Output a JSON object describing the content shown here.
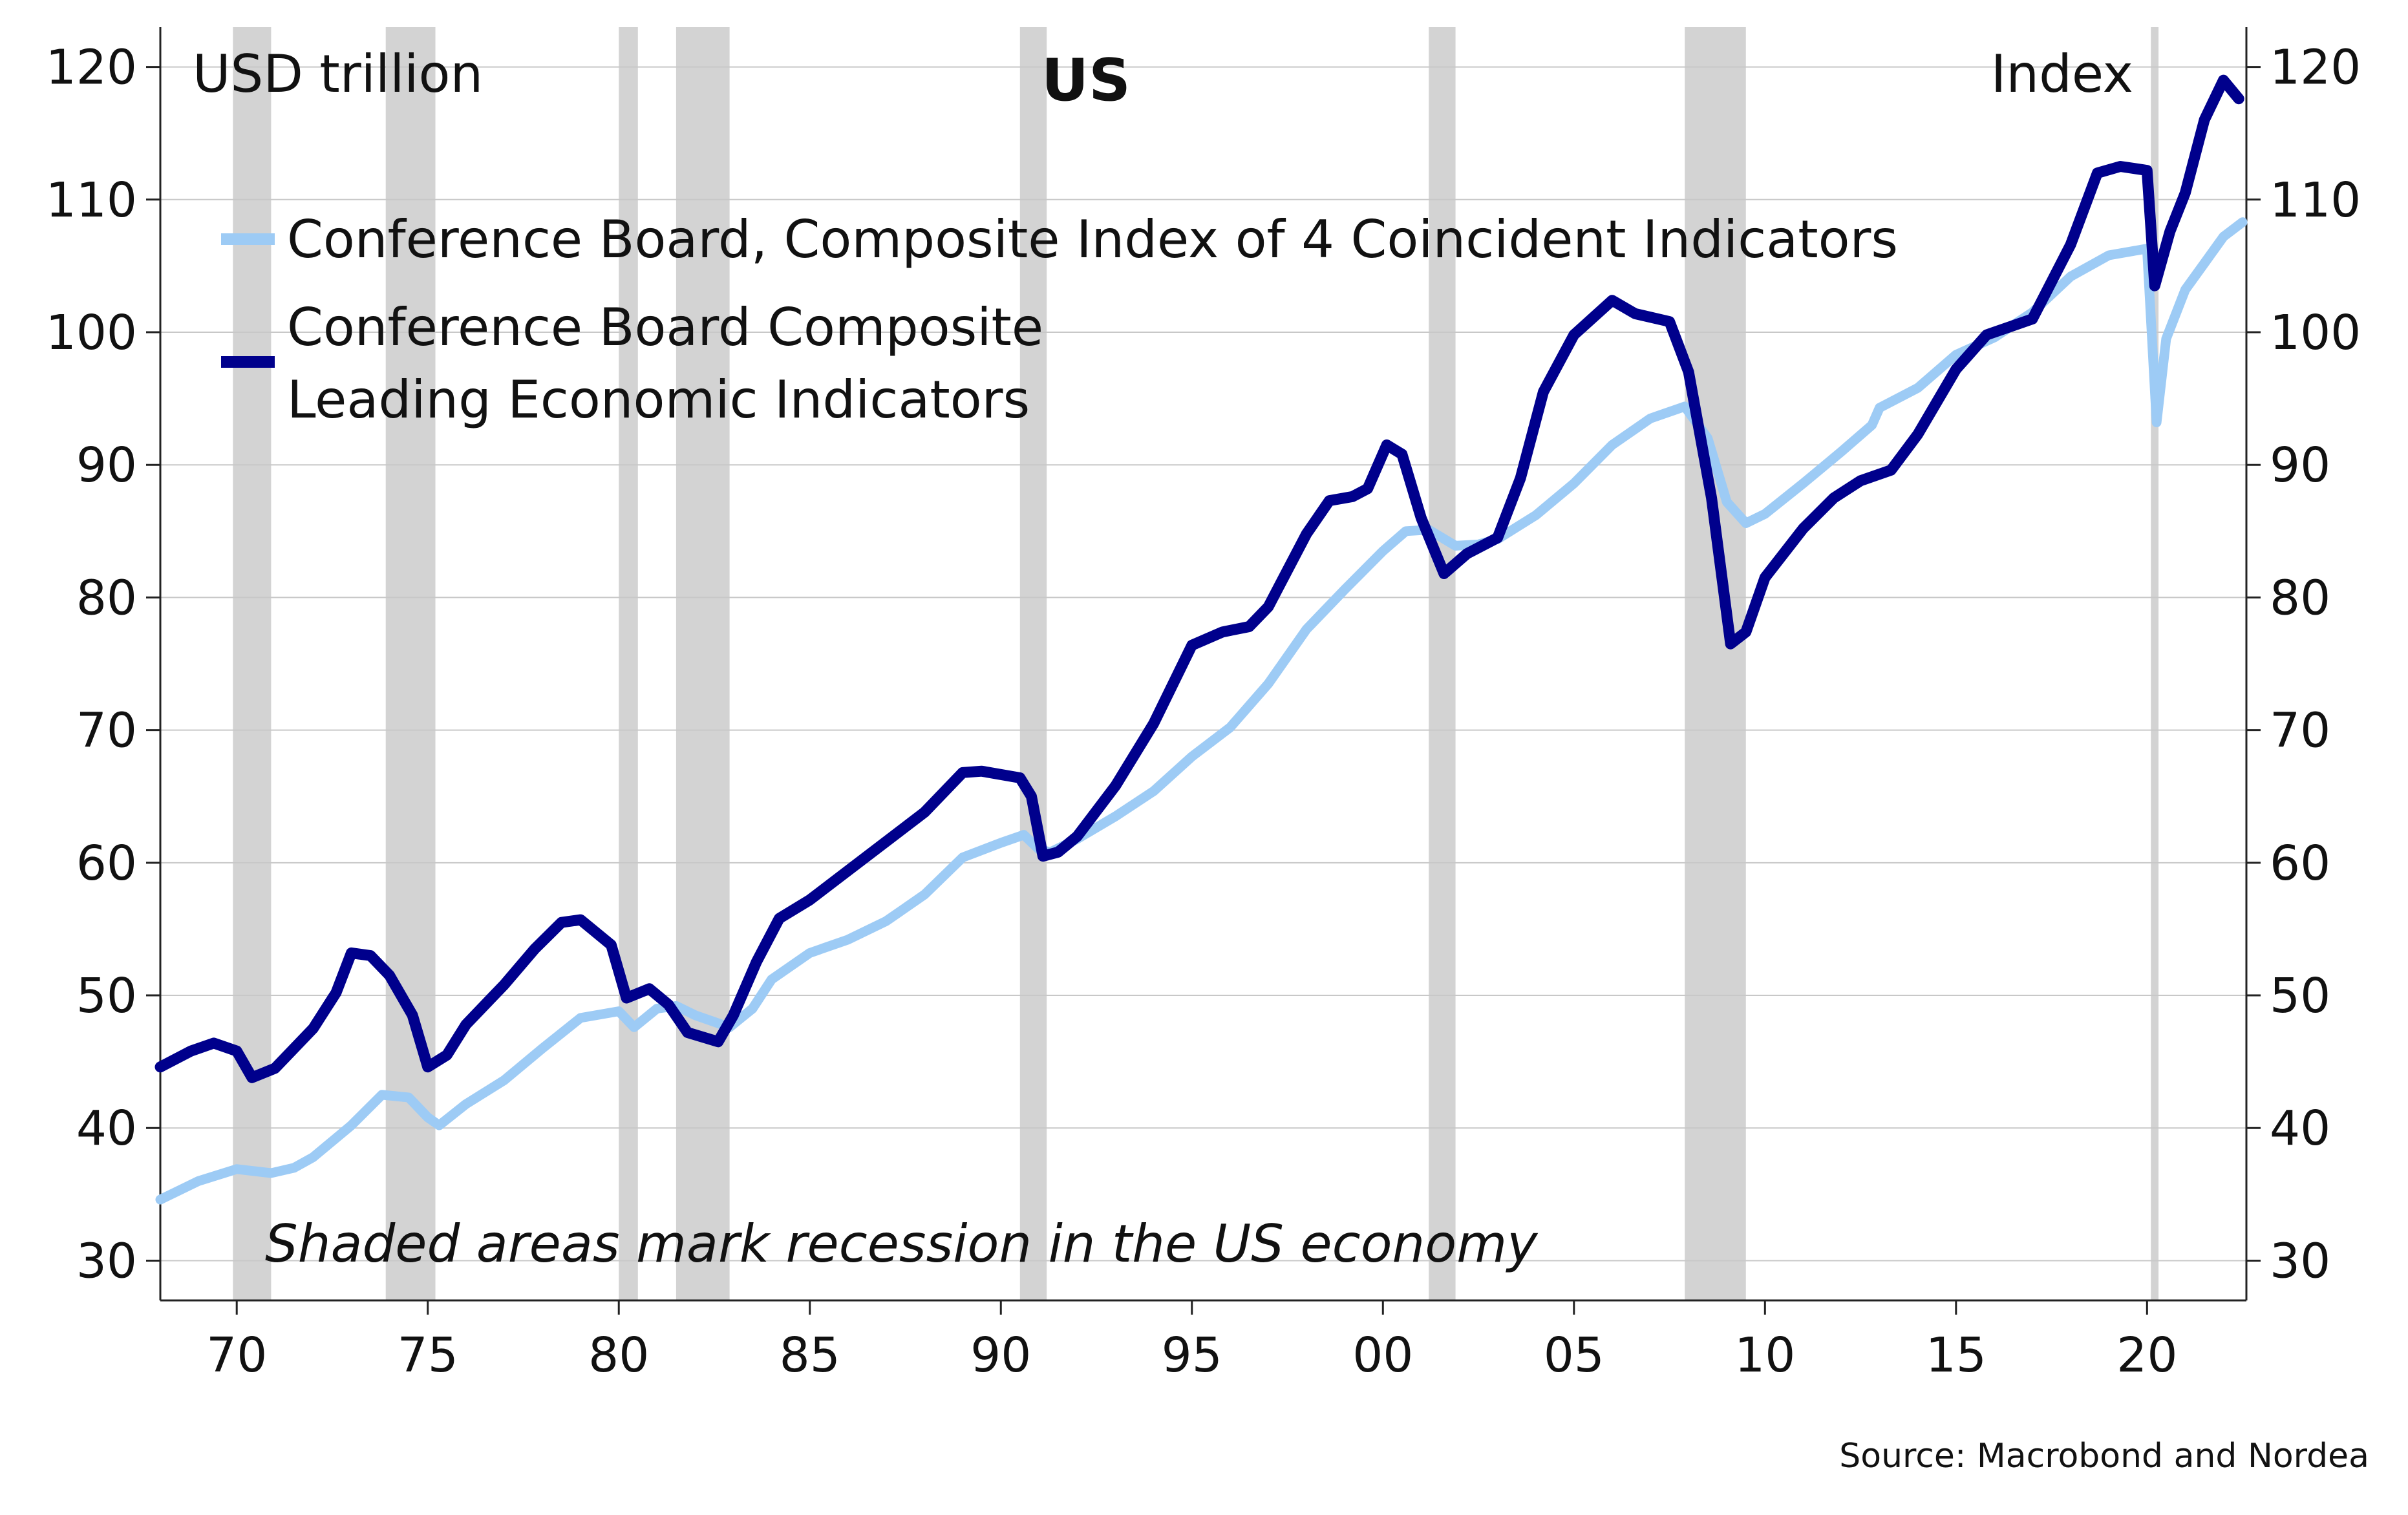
{
  "chart_data": {
    "type": "line",
    "title": "US",
    "ylabel_left": "USD trillion",
    "ylabel_right": "Index",
    "annotation": "Shaded areas mark recession in the US economy",
    "source": "Source: Macrobond and Nordea",
    "x_range": [
      1968,
      2022.6
    ],
    "ylim": [
      27,
      123
    ],
    "y_ticks": [
      30,
      40,
      50,
      60,
      70,
      80,
      90,
      100,
      110,
      120
    ],
    "x_ticks": [
      {
        "value": 1970,
        "label": "70"
      },
      {
        "value": 1975,
        "label": "75"
      },
      {
        "value": 1980,
        "label": "80"
      },
      {
        "value": 1985,
        "label": "85"
      },
      {
        "value": 1990,
        "label": "90"
      },
      {
        "value": 1995,
        "label": "95"
      },
      {
        "value": 2000,
        "label": "00"
      },
      {
        "value": 2005,
        "label": "05"
      },
      {
        "value": 2010,
        "label": "10"
      },
      {
        "value": 2015,
        "label": "15"
      },
      {
        "value": 2020,
        "label": "20"
      }
    ],
    "grid": "horizontal",
    "legend_position": "top-left",
    "recessions": [
      [
        1969.9,
        1970.9
      ],
      [
        1973.9,
        1975.2
      ],
      [
        1980.0,
        1980.5
      ],
      [
        1981.5,
        1982.9
      ],
      [
        1990.5,
        1991.2
      ],
      [
        2001.2,
        2001.9
      ],
      [
        2007.9,
        2009.5
      ],
      [
        2020.1,
        2020.3
      ]
    ],
    "recession_color": "#d3d3d3",
    "series": [
      {
        "name": "Conference Board, Composite Index of 4 Coincident Indicators",
        "color": "#9dcbf5",
        "points": [
          [
            1968.0,
            34.6
          ],
          [
            1969.0,
            36.0
          ],
          [
            1970.0,
            36.9
          ],
          [
            1970.9,
            36.6
          ],
          [
            1971.5,
            37.0
          ],
          [
            1972.0,
            37.8
          ],
          [
            1973.0,
            40.2
          ],
          [
            1973.8,
            42.5
          ],
          [
            1974.5,
            42.3
          ],
          [
            1975.0,
            40.8
          ],
          [
            1975.3,
            40.2
          ],
          [
            1976.0,
            41.8
          ],
          [
            1977.0,
            43.6
          ],
          [
            1978.0,
            46.0
          ],
          [
            1979.0,
            48.3
          ],
          [
            1980.0,
            48.8
          ],
          [
            1980.4,
            47.6
          ],
          [
            1981.0,
            49.0
          ],
          [
            1981.5,
            49.2
          ],
          [
            1982.0,
            48.5
          ],
          [
            1982.9,
            47.6
          ],
          [
            1983.5,
            49.0
          ],
          [
            1984.0,
            51.2
          ],
          [
            1985.0,
            53.2
          ],
          [
            1986.0,
            54.2
          ],
          [
            1987.0,
            55.6
          ],
          [
            1988.0,
            57.6
          ],
          [
            1989.0,
            60.4
          ],
          [
            1990.0,
            61.5
          ],
          [
            1990.6,
            62.1
          ],
          [
            1991.0,
            61.0
          ],
          [
            1991.3,
            60.8
          ],
          [
            1992.0,
            61.8
          ],
          [
            1993.0,
            63.5
          ],
          [
            1994.0,
            65.4
          ],
          [
            1995.0,
            68.0
          ],
          [
            1996.0,
            70.2
          ],
          [
            1997.0,
            73.5
          ],
          [
            1998.0,
            77.6
          ],
          [
            1999.0,
            80.6
          ],
          [
            2000.0,
            83.5
          ],
          [
            2000.6,
            85.0
          ],
          [
            2001.2,
            85.1
          ],
          [
            2001.9,
            83.9
          ],
          [
            2002.5,
            84.0
          ],
          [
            2003.0,
            84.4
          ],
          [
            2004.0,
            86.2
          ],
          [
            2005.0,
            88.6
          ],
          [
            2006.0,
            91.5
          ],
          [
            2007.0,
            93.5
          ],
          [
            2007.9,
            94.4
          ],
          [
            2008.5,
            92.0
          ],
          [
            2009.0,
            87.2
          ],
          [
            2009.5,
            85.6
          ],
          [
            2010.0,
            86.3
          ],
          [
            2011.0,
            88.6
          ],
          [
            2012.0,
            91.0
          ],
          [
            2012.8,
            93.0
          ],
          [
            2013.0,
            94.3
          ],
          [
            2014.0,
            95.8
          ],
          [
            2015.0,
            98.3
          ],
          [
            2016.0,
            99.6
          ],
          [
            2017.0,
            101.5
          ],
          [
            2018.0,
            104.2
          ],
          [
            2019.0,
            105.8
          ],
          [
            2020.0,
            106.3
          ],
          [
            2020.25,
            93.2
          ],
          [
            2020.5,
            99.5
          ],
          [
            2021.0,
            103.2
          ],
          [
            2021.5,
            105.2
          ],
          [
            2022.0,
            107.2
          ],
          [
            2022.5,
            108.3
          ]
        ]
      },
      {
        "name": "Conference Board Composite Leading Economic Indicators",
        "color": "#00008c",
        "points": [
          [
            1968.0,
            44.6
          ],
          [
            1968.8,
            45.8
          ],
          [
            1969.4,
            46.4
          ],
          [
            1970.0,
            45.8
          ],
          [
            1970.4,
            43.8
          ],
          [
            1971.0,
            44.5
          ],
          [
            1972.0,
            47.5
          ],
          [
            1972.6,
            50.2
          ],
          [
            1973.0,
            53.2
          ],
          [
            1973.5,
            53.0
          ],
          [
            1974.0,
            51.5
          ],
          [
            1974.6,
            48.5
          ],
          [
            1975.0,
            44.6
          ],
          [
            1975.5,
            45.5
          ],
          [
            1976.0,
            47.8
          ],
          [
            1977.0,
            50.8
          ],
          [
            1977.8,
            53.5
          ],
          [
            1978.5,
            55.5
          ],
          [
            1979.0,
            55.7
          ],
          [
            1979.8,
            53.8
          ],
          [
            1980.2,
            49.8
          ],
          [
            1980.8,
            50.5
          ],
          [
            1981.3,
            49.3
          ],
          [
            1981.8,
            47.2
          ],
          [
            1982.6,
            46.5
          ],
          [
            1983.0,
            48.5
          ],
          [
            1983.6,
            52.5
          ],
          [
            1984.2,
            55.8
          ],
          [
            1985.0,
            57.2
          ],
          [
            1986.0,
            59.4
          ],
          [
            1987.0,
            61.6
          ],
          [
            1988.0,
            63.8
          ],
          [
            1989.0,
            66.8
          ],
          [
            1989.5,
            66.9
          ],
          [
            1990.5,
            66.4
          ],
          [
            1990.8,
            65.0
          ],
          [
            1991.1,
            60.5
          ],
          [
            1991.5,
            60.8
          ],
          [
            1992.0,
            62.0
          ],
          [
            1993.0,
            65.8
          ],
          [
            1994.0,
            70.5
          ],
          [
            1995.0,
            76.4
          ],
          [
            1995.8,
            77.4
          ],
          [
            1996.5,
            77.8
          ],
          [
            1997.0,
            79.3
          ],
          [
            1998.0,
            84.8
          ],
          [
            1998.6,
            87.3
          ],
          [
            1999.2,
            87.6
          ],
          [
            1999.6,
            88.2
          ],
          [
            2000.1,
            91.5
          ],
          [
            2000.5,
            90.8
          ],
          [
            2001.0,
            86.0
          ],
          [
            2001.6,
            81.8
          ],
          [
            2002.2,
            83.3
          ],
          [
            2003.0,
            84.5
          ],
          [
            2003.6,
            89.0
          ],
          [
            2004.2,
            95.5
          ],
          [
            2005.0,
            99.8
          ],
          [
            2006.0,
            102.4
          ],
          [
            2006.6,
            101.4
          ],
          [
            2007.5,
            100.8
          ],
          [
            2008.0,
            97.0
          ],
          [
            2008.6,
            87.5
          ],
          [
            2009.1,
            76.5
          ],
          [
            2009.5,
            77.4
          ],
          [
            2010.0,
            81.5
          ],
          [
            2011.0,
            85.2
          ],
          [
            2011.8,
            87.5
          ],
          [
            2012.5,
            88.8
          ],
          [
            2013.3,
            89.6
          ],
          [
            2014.0,
            92.3
          ],
          [
            2015.0,
            97.2
          ],
          [
            2015.8,
            99.8
          ],
          [
            2017.0,
            101.0
          ],
          [
            2018.0,
            106.6
          ],
          [
            2018.7,
            112.0
          ],
          [
            2019.3,
            112.5
          ],
          [
            2020.0,
            112.2
          ],
          [
            2020.2,
            103.5
          ],
          [
            2020.6,
            107.6
          ],
          [
            2021.0,
            110.5
          ],
          [
            2021.5,
            116.0
          ],
          [
            2022.0,
            119.0
          ],
          [
            2022.4,
            117.6
          ]
        ]
      }
    ]
  }
}
